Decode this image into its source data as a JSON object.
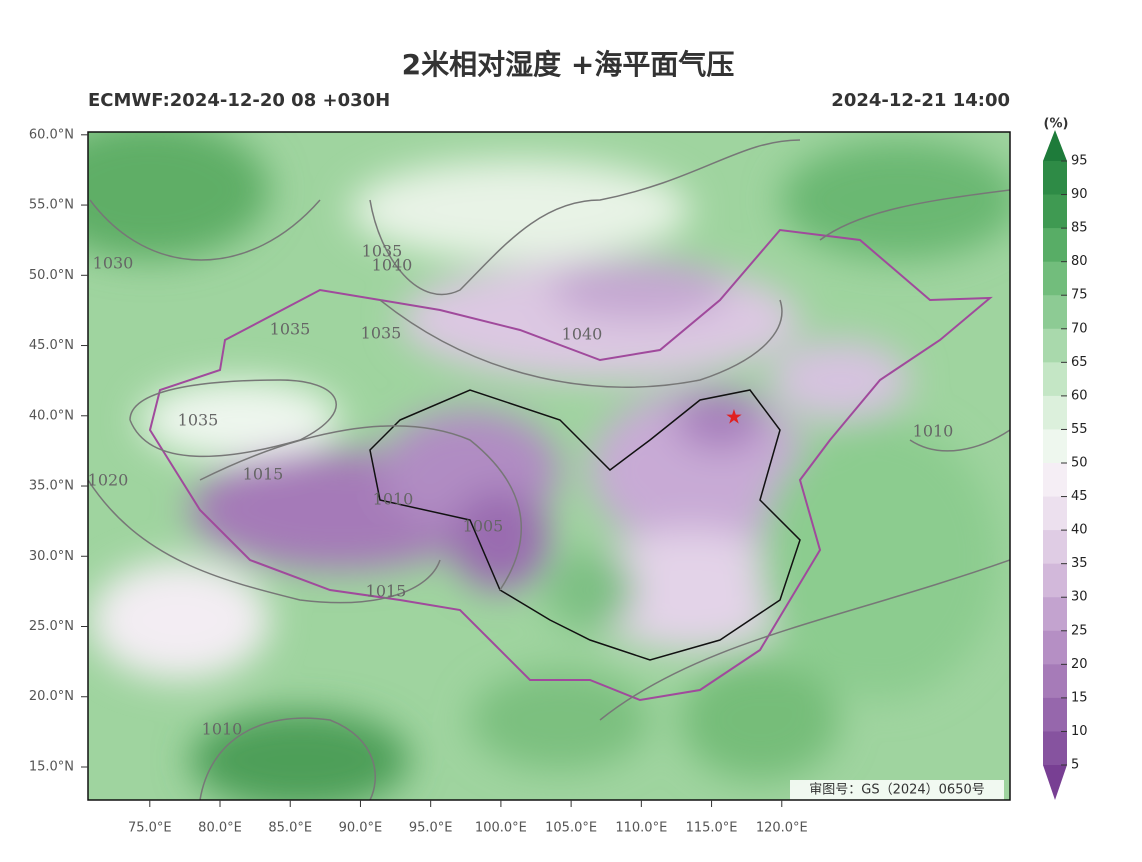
{
  "title": "2米相对湿度 +海平面气压",
  "model_run": "ECMWF:2024-12-20 08 +030H",
  "valid_time": "2024-12-21 14:00",
  "lat_lim": [
    12.65,
    60.2
  ],
  "lon_lim": [
    70.6,
    136.25
  ],
  "lat_ticks": [
    {
      "value": 60,
      "label": "60.0°N"
    },
    {
      "value": 55,
      "label": "55.0°N"
    },
    {
      "value": 50,
      "label": "50.0°N"
    },
    {
      "value": 45,
      "label": "45.0°N"
    },
    {
      "value": 40,
      "label": "40.0°N"
    },
    {
      "value": 35,
      "label": "35.0°N"
    },
    {
      "value": 30,
      "label": "30.0°N"
    },
    {
      "value": 25,
      "label": "25.0°N"
    },
    {
      "value": 20,
      "label": "20.0°N"
    },
    {
      "value": 15,
      "label": "15.0°N"
    }
  ],
  "lon_ticks": [
    {
      "value": 75,
      "label": "75.0°E"
    },
    {
      "value": 80,
      "label": "80.0°E"
    },
    {
      "value": 85,
      "label": "85.0°E"
    },
    {
      "value": 90,
      "label": "90.0°E"
    },
    {
      "value": 95,
      "label": "95.0°E"
    },
    {
      "value": 100,
      "label": "100.0°E"
    },
    {
      "value": 105,
      "label": "105.0°E"
    },
    {
      "value": 110,
      "label": "110.0°E"
    },
    {
      "value": 115,
      "label": "115.0°E"
    },
    {
      "value": 120,
      "label": "120.0°E"
    }
  ],
  "colorbar": {
    "unit": "(%)",
    "ticks": [
      95,
      90,
      85,
      80,
      75,
      70,
      65,
      60,
      55,
      50,
      45,
      40,
      35,
      30,
      25,
      20,
      15,
      10,
      5
    ],
    "colors": [
      "#1e7b3a",
      "#2e8b46",
      "#3f9a52",
      "#58ad66",
      "#72bd7c",
      "#8dcb94",
      "#a9d9ac",
      "#c4e6c5",
      "#dcf0dc",
      "#eef7ee",
      "#f5eef5",
      "#ece0ee",
      "#dfcce4",
      "#d2b8da",
      "#c3a3cf",
      "#b58fc4",
      "#a67bb8",
      "#9667ac",
      "#86539f",
      "#783f93"
    ]
  },
  "isobars": [
    1030,
    1035,
    1040,
    1035,
    1035,
    1040,
    1035,
    1020,
    1015,
    1010,
    1005,
    1015,
    1010,
    1010
  ],
  "credit": "审图号：GS（2024）0650号"
}
